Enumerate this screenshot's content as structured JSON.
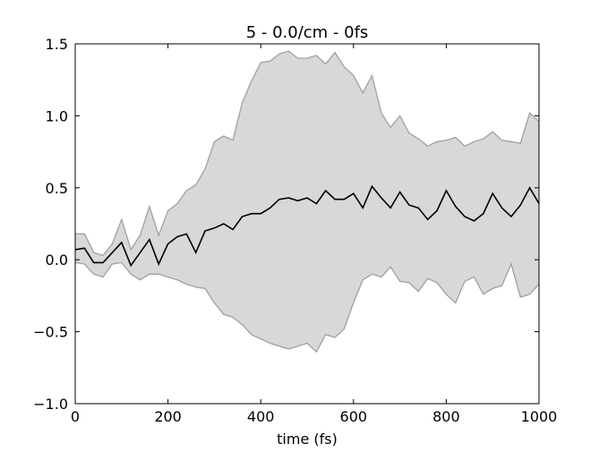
{
  "chart_data": {
    "type": "area",
    "title": "5 - 0.0/cm - 0fs",
    "xlabel": "time (fs)",
    "ylabel": "",
    "xlim": [
      0,
      1000
    ],
    "ylim": [
      -1.0,
      1.5
    ],
    "xticks": [
      {
        "value": 0,
        "label": "0"
      },
      {
        "value": 200,
        "label": "200"
      },
      {
        "value": 400,
        "label": "400"
      },
      {
        "value": 600,
        "label": "600"
      },
      {
        "value": 800,
        "label": "800"
      },
      {
        "value": 1000,
        "label": "1000"
      }
    ],
    "yticks": [
      {
        "value": -1.0,
        "label": "−1.0"
      },
      {
        "value": -0.5,
        "label": "−0.5"
      },
      {
        "value": 0.0,
        "label": "0.0"
      },
      {
        "value": 0.5,
        "label": "0.5"
      },
      {
        "value": 1.0,
        "label": "1.0"
      },
      {
        "value": 1.5,
        "label": "1.5"
      }
    ],
    "grid": false,
    "legend": "none",
    "colors": {
      "mean_line": "#000000",
      "band_fill": "#d8d8d8",
      "band_edge": "#a0a0a0",
      "axes": "#000000"
    },
    "x": [
      0,
      20,
      40,
      60,
      80,
      100,
      120,
      140,
      160,
      180,
      200,
      220,
      240,
      260,
      280,
      300,
      320,
      340,
      360,
      380,
      400,
      420,
      440,
      460,
      480,
      500,
      520,
      540,
      560,
      580,
      600,
      620,
      640,
      660,
      680,
      700,
      720,
      740,
      760,
      780,
      800,
      820,
      840,
      860,
      880,
      900,
      920,
      940,
      960,
      980,
      1000
    ],
    "series": [
      {
        "name": "mean",
        "values": [
          0.07,
          0.08,
          -0.02,
          -0.02,
          0.05,
          0.12,
          -0.04,
          0.05,
          0.14,
          -0.03,
          0.11,
          0.16,
          0.18,
          0.05,
          0.2,
          0.22,
          0.25,
          0.21,
          0.3,
          0.32,
          0.32,
          0.36,
          0.42,
          0.43,
          0.41,
          0.43,
          0.39,
          0.48,
          0.42,
          0.42,
          0.46,
          0.36,
          0.51,
          0.43,
          0.36,
          0.47,
          0.38,
          0.36,
          0.28,
          0.34,
          0.48,
          0.37,
          0.3,
          0.27,
          0.32,
          0.46,
          0.36,
          0.3,
          0.38,
          0.5,
          0.39
        ]
      },
      {
        "name": "upper",
        "values": [
          0.18,
          0.18,
          0.05,
          0.03,
          0.11,
          0.28,
          0.07,
          0.17,
          0.37,
          0.17,
          0.34,
          0.39,
          0.48,
          0.52,
          0.63,
          0.82,
          0.86,
          0.83,
          1.09,
          1.24,
          1.37,
          1.38,
          1.43,
          1.45,
          1.4,
          1.4,
          1.42,
          1.36,
          1.44,
          1.34,
          1.28,
          1.16,
          1.28,
          1.02,
          0.92,
          1.0,
          0.88,
          0.84,
          0.79,
          0.82,
          0.83,
          0.85,
          0.79,
          0.82,
          0.84,
          0.89,
          0.83,
          0.82,
          0.81,
          1.02,
          0.96
        ]
      },
      {
        "name": "lower",
        "values": [
          -0.02,
          -0.03,
          -0.1,
          -0.12,
          -0.03,
          -0.02,
          -0.1,
          -0.14,
          -0.1,
          -0.1,
          -0.12,
          -0.14,
          -0.17,
          -0.19,
          -0.2,
          -0.3,
          -0.38,
          -0.4,
          -0.45,
          -0.52,
          -0.55,
          -0.58,
          -0.6,
          -0.62,
          -0.6,
          -0.58,
          -0.64,
          -0.52,
          -0.54,
          -0.48,
          -0.3,
          -0.14,
          -0.1,
          -0.12,
          -0.05,
          -0.15,
          -0.16,
          -0.22,
          -0.13,
          -0.16,
          -0.24,
          -0.3,
          -0.15,
          -0.12,
          -0.24,
          -0.2,
          -0.18,
          -0.03,
          -0.26,
          -0.24,
          -0.17
        ]
      }
    ]
  }
}
